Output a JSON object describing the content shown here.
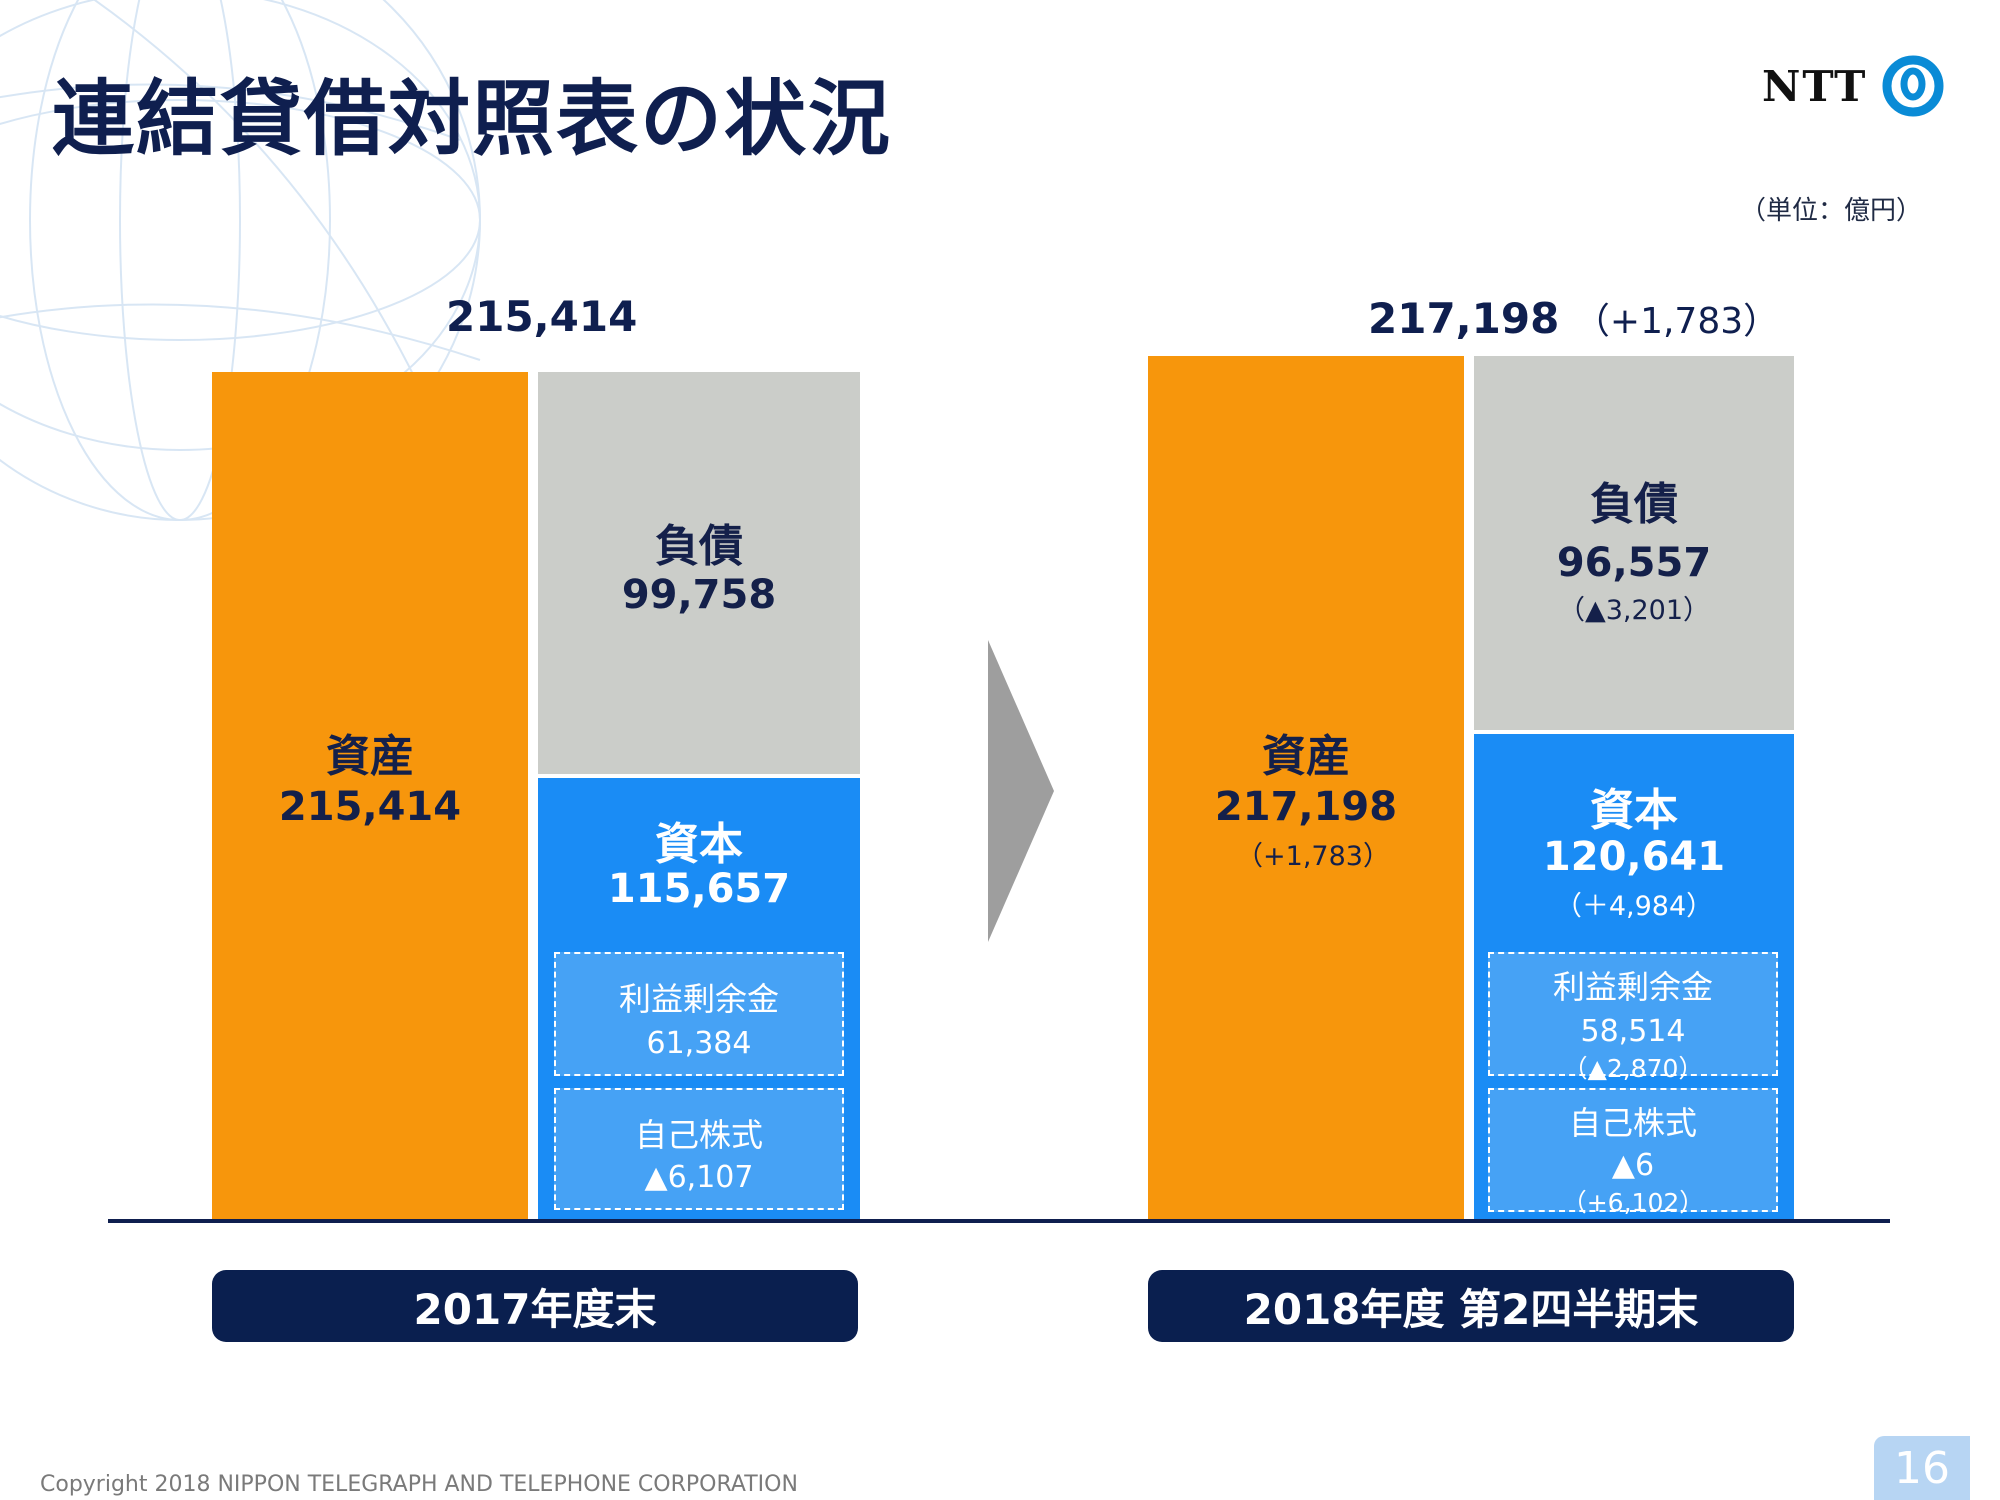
{
  "title": "連結貸借対照表の状況",
  "logo": {
    "text": "NTT",
    "icon": "ntt-logo-icon"
  },
  "unit": "（単位：億円）",
  "chart_data": {
    "type": "bar",
    "stacked": true,
    "categories": [
      "2017年度末",
      "2018年度 第2四半期末"
    ],
    "series": [
      {
        "name": "資産",
        "values": [
          215414,
          217198
        ],
        "changes": [
          "",
          "（+1,783）"
        ]
      },
      {
        "name": "負債",
        "values": [
          99758,
          96557
        ],
        "changes": [
          "",
          "（▲3,201）"
        ]
      },
      {
        "name": "資本",
        "values": [
          115657,
          120641
        ],
        "changes": [
          "",
          "（＋4,984）"
        ]
      }
    ],
    "totals": [
      {
        "value": "215,414",
        "change": ""
      },
      {
        "value": "217,198",
        "change": "（+1,783）"
      }
    ],
    "bars": [
      {
        "asset": {
          "label": "資産",
          "value": "215,414",
          "change": ""
        },
        "liabilities": {
          "label": "負債",
          "value": "99,758",
          "change": ""
        },
        "equity": {
          "label": "資本",
          "value": "115,657",
          "change": ""
        },
        "retained": {
          "label": "利益剰余金",
          "value": "61,384",
          "change": ""
        },
        "treasury": {
          "label": "自己株式",
          "value": "▲6,107",
          "change": ""
        }
      },
      {
        "asset": {
          "label": "資産",
          "value": "217,198",
          "change": "（+1,783）"
        },
        "liabilities": {
          "label": "負債",
          "value": "96,557",
          "change": "（▲3,201）"
        },
        "equity": {
          "label": "資本",
          "value": "120,641",
          "change": "（＋4,984）"
        },
        "retained": {
          "label": "利益剰余金",
          "value": "58,514",
          "change": "（▲2,870）"
        },
        "treasury": {
          "label": "自己株式",
          "value": "▲6",
          "change": "（+6,102）"
        }
      }
    ],
    "colors": {
      "asset": "#f7960c",
      "liabilities": "#cbcdc9",
      "equity": "#1a8cf5",
      "sub": "#46a2f5",
      "label": "#0a1f4f"
    }
  },
  "footer": "Copyright 2018 NIPPON TELEGRAPH AND TELEPHONE CORPORATION",
  "page_number": "16"
}
